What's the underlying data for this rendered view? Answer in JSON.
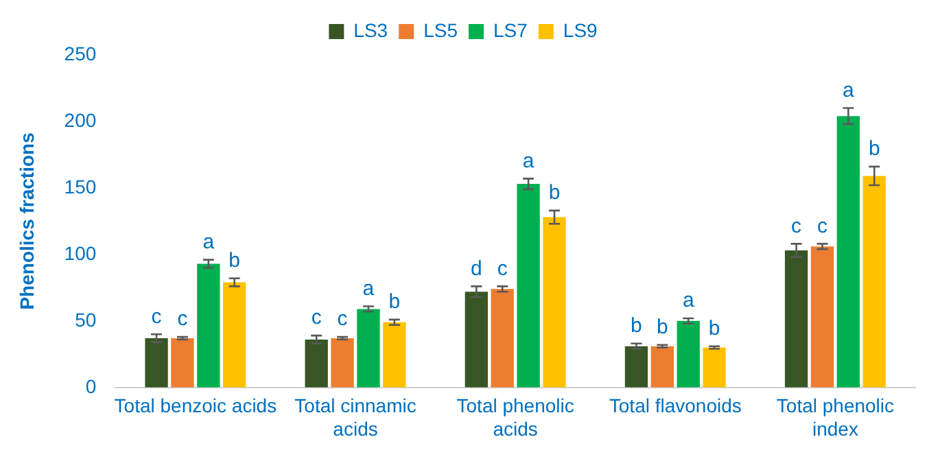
{
  "chart_data": {
    "type": "bar",
    "ylabel": "Phenolics fractions",
    "categories": [
      "Total benzoic acids",
      "Total cinnamic acids",
      "Total phenolic acids",
      "Total flavonoids",
      "Total phenolic index"
    ],
    "series": [
      {
        "name": "LS3",
        "color": "#375623",
        "values": [
          37,
          36,
          72,
          31,
          103
        ],
        "errors": [
          3,
          3,
          4,
          2,
          5
        ],
        "value_labels": [
          "c",
          "c",
          "d",
          "b",
          "c"
        ]
      },
      {
        "name": "LS5",
        "color": "#ed7d31",
        "values": [
          37,
          37,
          74,
          31,
          106
        ],
        "errors": [
          1,
          1,
          2,
          1,
          2
        ],
        "value_labels": [
          "c",
          "c",
          "c",
          "b",
          "c"
        ]
      },
      {
        "name": "LS7",
        "color": "#00b050",
        "values": [
          93,
          59,
          153,
          50,
          204
        ],
        "errors": [
          3,
          2,
          4,
          2,
          6
        ],
        "value_labels": [
          "a",
          "a",
          "a",
          "a",
          "a"
        ]
      },
      {
        "name": "LS9",
        "color": "#ffc000",
        "values": [
          79,
          49,
          128,
          30,
          159
        ],
        "errors": [
          3,
          2,
          5,
          1,
          7
        ],
        "value_labels": [
          "b",
          "b",
          "b",
          "b",
          "b"
        ]
      }
    ],
    "ylim": [
      0,
      250
    ],
    "yticks": [
      0,
      50,
      100,
      150,
      200,
      250
    ],
    "grid": false,
    "legend": "top"
  }
}
